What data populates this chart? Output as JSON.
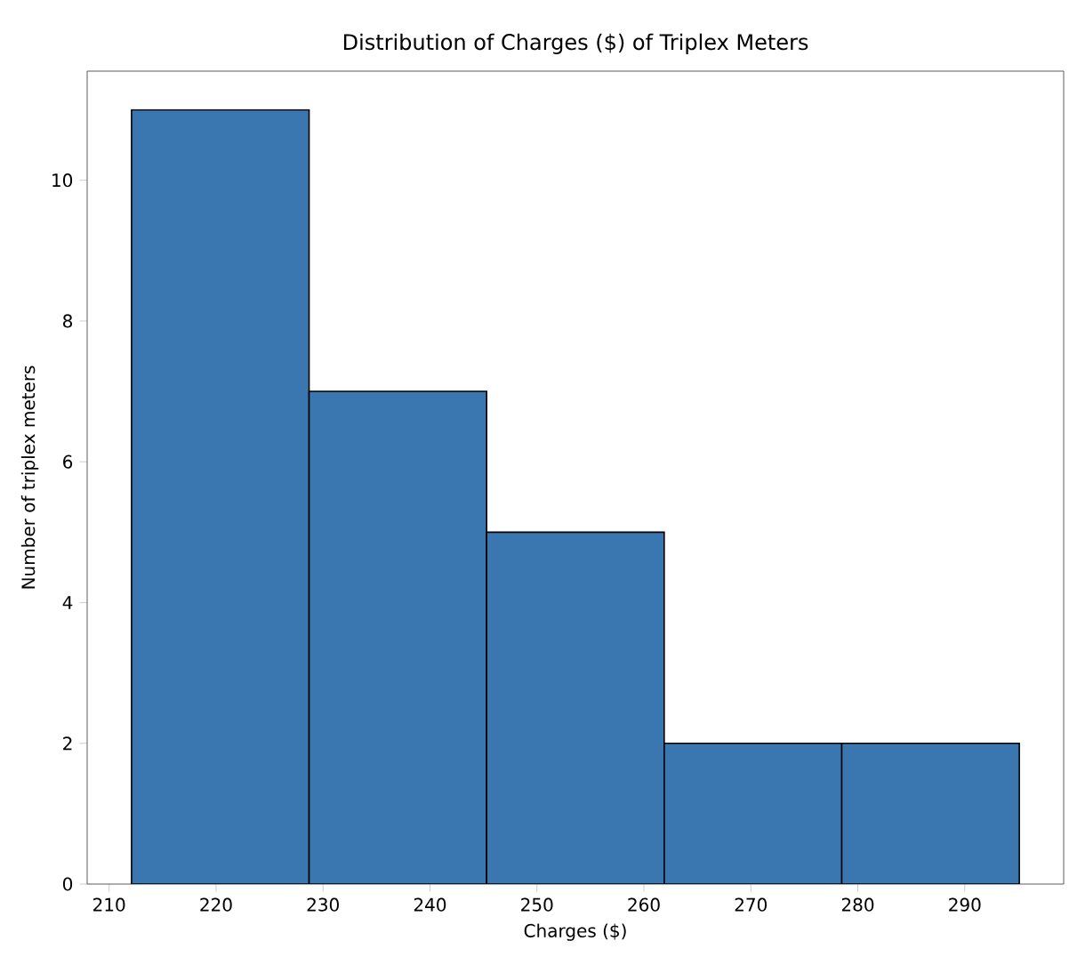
{
  "chart_data": {
    "type": "histogram",
    "title": "Distribution of Charges ($) of Triplex Meters",
    "xlabel": "Charges ($)",
    "ylabel": "Number of triplex meters",
    "bins": [
      212.1,
      228.7,
      245.3,
      261.9,
      278.5,
      295.1
    ],
    "values": [
      11,
      7,
      5,
      2,
      2
    ],
    "color": "#3a76af",
    "xlim": [
      207.95,
      299.25
    ],
    "ylim": [
      0,
      11.55
    ],
    "xticks": [
      210,
      220,
      230,
      240,
      250,
      260,
      270,
      280,
      290
    ],
    "yticks": [
      0,
      2,
      4,
      6,
      8,
      10
    ]
  }
}
